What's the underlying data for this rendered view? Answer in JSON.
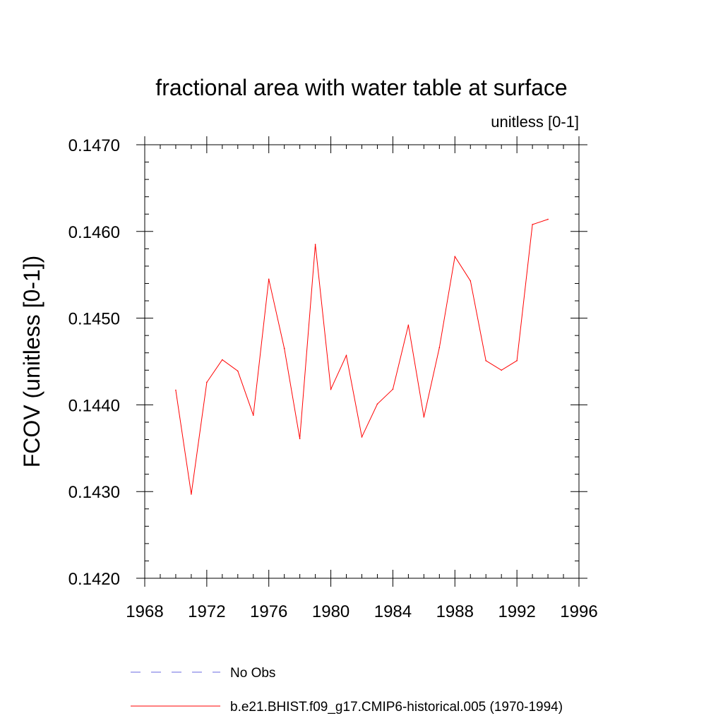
{
  "chart_data": {
    "type": "line",
    "title": "fractional area with water table at surface",
    "subtitle": "unitless [0-1]",
    "xlabel": "",
    "ylabel": "FCOV  (unitless [0-1])",
    "xlim": [
      1968,
      1996
    ],
    "ylim": [
      0.142,
      0.147
    ],
    "x_ticks": [
      1968,
      1972,
      1976,
      1980,
      1984,
      1988,
      1992,
      1996
    ],
    "x_tick_labels": [
      "1968",
      "1972",
      "1976",
      "1980",
      "1984",
      "1988",
      "1992",
      "1996"
    ],
    "y_ticks": [
      0.142,
      0.143,
      0.144,
      0.145,
      0.146,
      0.147
    ],
    "y_tick_labels": [
      "0.1420",
      "0.1430",
      "0.1440",
      "0.1450",
      "0.1460",
      "0.1470"
    ],
    "grid": false,
    "legend_position": "bottom",
    "series": [
      {
        "name": "b.e21.BHIST.f09_g17.CMIP6-historical.005 (1970-1994)",
        "color": "#ff0000",
        "dash": "solid",
        "x": [
          1970,
          1971,
          1972,
          1973,
          1974,
          1975,
          1976,
          1977,
          1978,
          1979,
          1980,
          1981,
          1982,
          1983,
          1984,
          1985,
          1986,
          1987,
          1988,
          1989,
          1990,
          1991,
          1992,
          1993,
          1994
        ],
        "y": [
          0.14417,
          0.14297,
          0.14426,
          0.14452,
          0.14439,
          0.14388,
          0.14545,
          0.14465,
          0.14361,
          0.14585,
          0.14418,
          0.14457,
          0.14363,
          0.14401,
          0.14418,
          0.14492,
          0.14386,
          0.14466,
          0.14571,
          0.14543,
          0.14451,
          0.1444,
          0.14451,
          0.14608,
          0.14614
        ]
      }
    ],
    "legend": [
      {
        "label": "No Obs",
        "color": "#6a6ae0",
        "dash": "dashed"
      },
      {
        "label": "b.e21.BHIST.f09_g17.CMIP6-historical.005 (1970-1994)",
        "color": "#ff0000",
        "dash": "solid"
      }
    ]
  }
}
